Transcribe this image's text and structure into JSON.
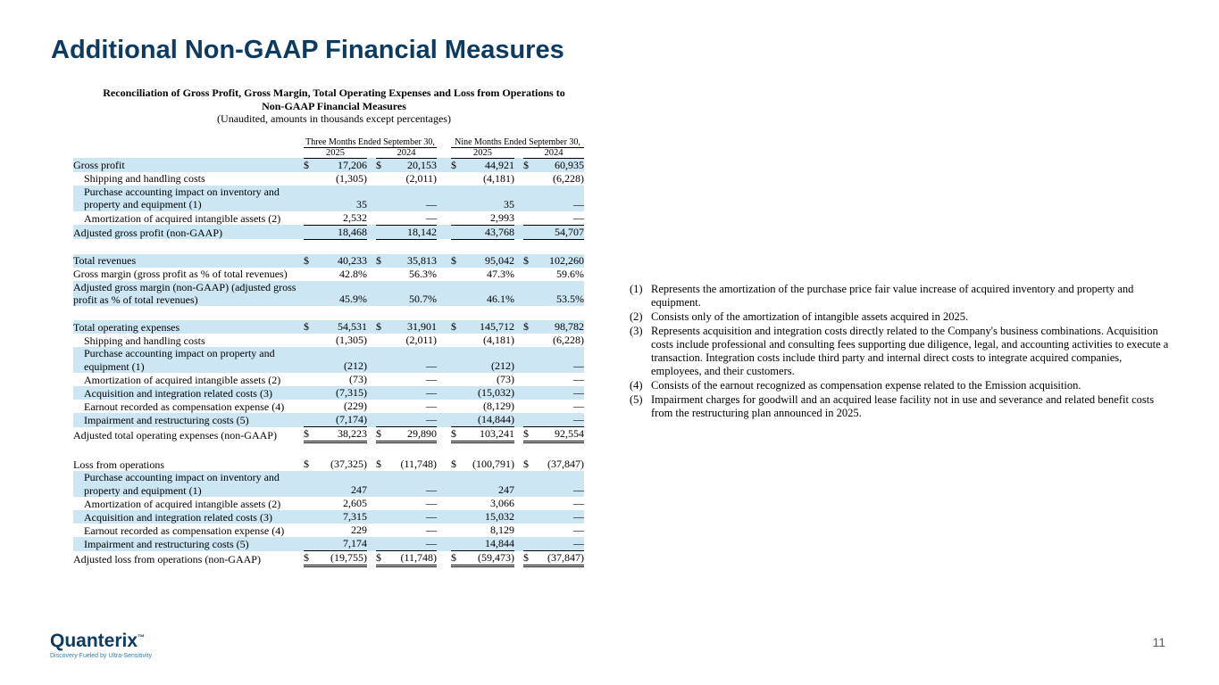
{
  "slide": {
    "title": "Additional Non-GAAP Financial Measures",
    "page_number": "11"
  },
  "table": {
    "heading_line1": "Reconciliation of Gross Profit, Gross Margin, Total Operating Expenses and Loss from Operations to",
    "heading_line2": "Non-GAAP Financial Measures",
    "heading_line3": "(Unaudited, amounts in thousands except percentages)",
    "col_groups": [
      "Three Months Ended September 30,",
      "Nine Months Ended September 30,"
    ],
    "years": [
      "2025",
      "2024",
      "2025",
      "2024"
    ],
    "rows": [
      {
        "label": "Gross profit",
        "dollar": true,
        "values": [
          "17,206",
          "20,153",
          "44,921",
          "60,935"
        ],
        "shaded": true
      },
      {
        "label": "Shipping and handling costs",
        "indent": true,
        "values": [
          "(1,305)",
          "(2,011)",
          "(4,181)",
          "(6,228)"
        ]
      },
      {
        "label": "Purchase accounting impact on inventory and property and equipment (1)",
        "indent": true,
        "values": [
          "35",
          "—",
          "35",
          "—"
        ],
        "shaded": true
      },
      {
        "label": "Amortization of acquired intangible assets (2)",
        "indent": true,
        "values": [
          "2,532",
          "—",
          "2,993",
          "—"
        ]
      },
      {
        "label": "Adjusted gross profit (non-GAAP)",
        "values": [
          "18,468",
          "18,142",
          "43,768",
          "54,707"
        ],
        "shaded": true,
        "total": "single"
      },
      {
        "spacer": true
      },
      {
        "label": "Total revenues",
        "dollar": true,
        "values": [
          "40,233",
          "35,813",
          "95,042",
          "102,260"
        ],
        "shaded": true
      },
      {
        "label": "Gross margin (gross profit as % of total revenues)",
        "values": [
          "42.8%",
          "56.3%",
          "47.3%",
          "59.6%"
        ]
      },
      {
        "label": "Adjusted gross margin (non-GAAP) (adjusted gross profit as % of total revenues)",
        "values": [
          "45.9%",
          "50.7%",
          "46.1%",
          "53.5%"
        ],
        "shaded": true
      },
      {
        "spacer": true
      },
      {
        "label": "Total operating expenses",
        "dollar": true,
        "values": [
          "54,531",
          "31,901",
          "145,712",
          "98,782"
        ],
        "shaded": true
      },
      {
        "label": "Shipping and handling costs",
        "indent": true,
        "values": [
          "(1,305)",
          "(2,011)",
          "(4,181)",
          "(6,228)"
        ]
      },
      {
        "label": "Purchase accounting impact on property and equipment (1)",
        "indent": true,
        "values": [
          "(212)",
          "—",
          "(212)",
          "—"
        ],
        "shaded": true
      },
      {
        "label": "Amortization of acquired intangible assets (2)",
        "indent": true,
        "values": [
          "(73)",
          "—",
          "(73)",
          "—"
        ]
      },
      {
        "label": "Acquisition and integration related costs (3)",
        "indent": true,
        "values": [
          "(7,315)",
          "—",
          "(15,032)",
          "—"
        ],
        "shaded": true
      },
      {
        "label": "Earnout recorded as compensation expense (4)",
        "indent": true,
        "values": [
          "(229)",
          "—",
          "(8,129)",
          "—"
        ]
      },
      {
        "label": "Impairment and restructuring costs (5)",
        "indent": true,
        "values": [
          "(7,174)",
          "—",
          "(14,844)",
          "—"
        ],
        "shaded": true
      },
      {
        "label": "Adjusted total operating expenses (non-GAAP)",
        "dollar": true,
        "values": [
          "38,223",
          "29,890",
          "103,241",
          "92,554"
        ],
        "total": "double"
      },
      {
        "spacer": true
      },
      {
        "label": "Loss from operations",
        "dollar": true,
        "values": [
          "(37,325)",
          "(11,748)",
          "(100,791)",
          "(37,847)"
        ]
      },
      {
        "label": "Purchase accounting impact on inventory and property and equipment (1)",
        "indent": true,
        "values": [
          "247",
          "—",
          "247",
          "—"
        ],
        "shaded": true
      },
      {
        "label": "Amortization of acquired intangible assets (2)",
        "indent": true,
        "values": [
          "2,605",
          "—",
          "3,066",
          "—"
        ]
      },
      {
        "label": "Acquisition and integration related costs (3)",
        "indent": true,
        "values": [
          "7,315",
          "—",
          "15,032",
          "—"
        ],
        "shaded": true
      },
      {
        "label": "Earnout recorded as compensation expense (4)",
        "indent": true,
        "values": [
          "229",
          "—",
          "8,129",
          "—"
        ]
      },
      {
        "label": "Impairment and restructuring costs (5)",
        "indent": true,
        "values": [
          "7,174",
          "—",
          "14,844",
          "—"
        ],
        "shaded": true
      },
      {
        "label": "Adjusted loss from operations (non-GAAP)",
        "dollar": true,
        "values": [
          "(19,755)",
          "(11,748)",
          "(59,473)",
          "(37,847)"
        ],
        "total": "double"
      }
    ]
  },
  "footnotes": [
    {
      "marker": "(1)",
      "text": "Represents the amortization of the purchase price fair value increase of acquired inventory and property and equipment."
    },
    {
      "marker": "(2)",
      "text": "Consists only of the amortization of intangible assets acquired in 2025."
    },
    {
      "marker": "(3)",
      "text": "Represents acquisition and integration costs directly related to the Company's business combinations. Acquisition costs include professional and consulting fees supporting due diligence, legal, and accounting activities to execute a transaction. Integration costs include third party and internal direct costs to integrate acquired companies, employees, and their customers."
    },
    {
      "marker": "(4)",
      "text": "Consists of the earnout recognized as compensation expense related to the Emission acquisition."
    },
    {
      "marker": "(5)",
      "text": "Impairment charges for goodwill and an acquired lease facility not in use and severance and related benefit costs from the restructuring plan announced in 2025."
    }
  ],
  "footer": {
    "brand": "Quanterix",
    "tm": "™",
    "tagline": "Discovery Fueled by Ultra-Sensitivity"
  },
  "colors": {
    "title": "#0d3a5f",
    "row_shade": "#cce6f4",
    "brand": "#0d3a5f"
  }
}
